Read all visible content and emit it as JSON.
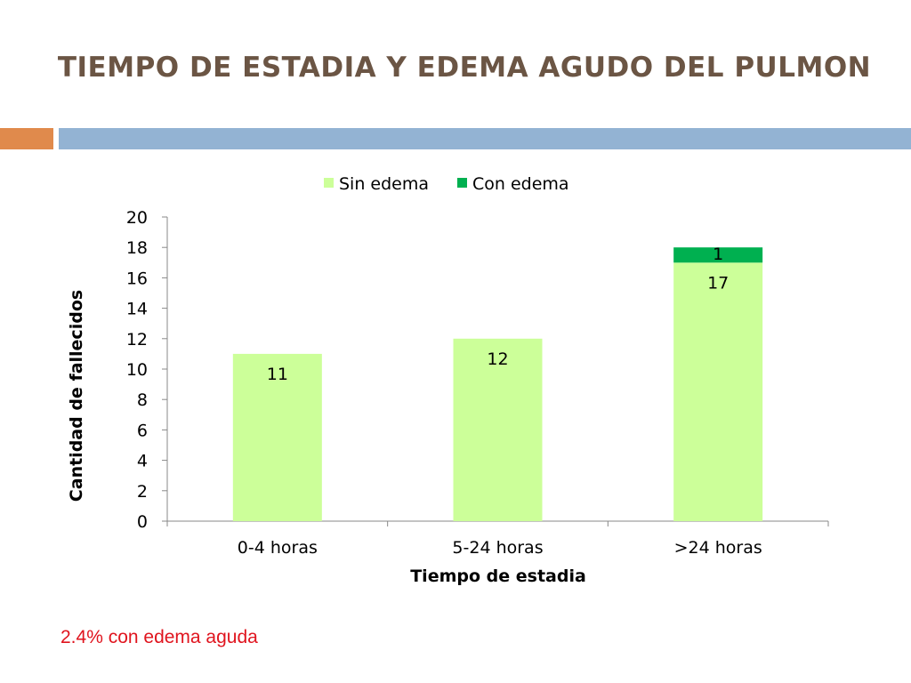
{
  "slide": {
    "title": "TIEMPO DE ESTADIA Y EDEMA AGUDO DEL PULMON",
    "footnote": "2.4% con edema aguda",
    "colors": {
      "title": "#6b5544",
      "accent_orange": "#e08a4c",
      "accent_blue": "#93b3d3",
      "footnote": "#e0141e"
    }
  },
  "chart_data": {
    "type": "bar",
    "stacked": true,
    "categories": [
      "0-4 horas",
      "5-24 horas",
      ">24 horas"
    ],
    "series": [
      {
        "name": "Sin edema",
        "values": [
          11,
          12,
          17
        ],
        "color": "#ccff99"
      },
      {
        "name": "Con edema",
        "values": [
          0,
          0,
          1
        ],
        "color": "#00b050"
      }
    ],
    "data_labels": [
      {
        "series": 0,
        "category": 0,
        "text": "11"
      },
      {
        "series": 0,
        "category": 1,
        "text": "12"
      },
      {
        "series": 0,
        "category": 2,
        "text": "17"
      },
      {
        "series": 1,
        "category": 2,
        "text": "1"
      }
    ],
    "xlabel": "Tiempo de estadia",
    "ylabel": "Cantidad de fallecidos",
    "ylim": [
      0,
      20
    ],
    "yticks": [
      "0",
      "2",
      "4",
      "6",
      "8",
      "10",
      "12",
      "14",
      "16",
      "18",
      "20"
    ],
    "legend_position": "top",
    "grid": false
  }
}
